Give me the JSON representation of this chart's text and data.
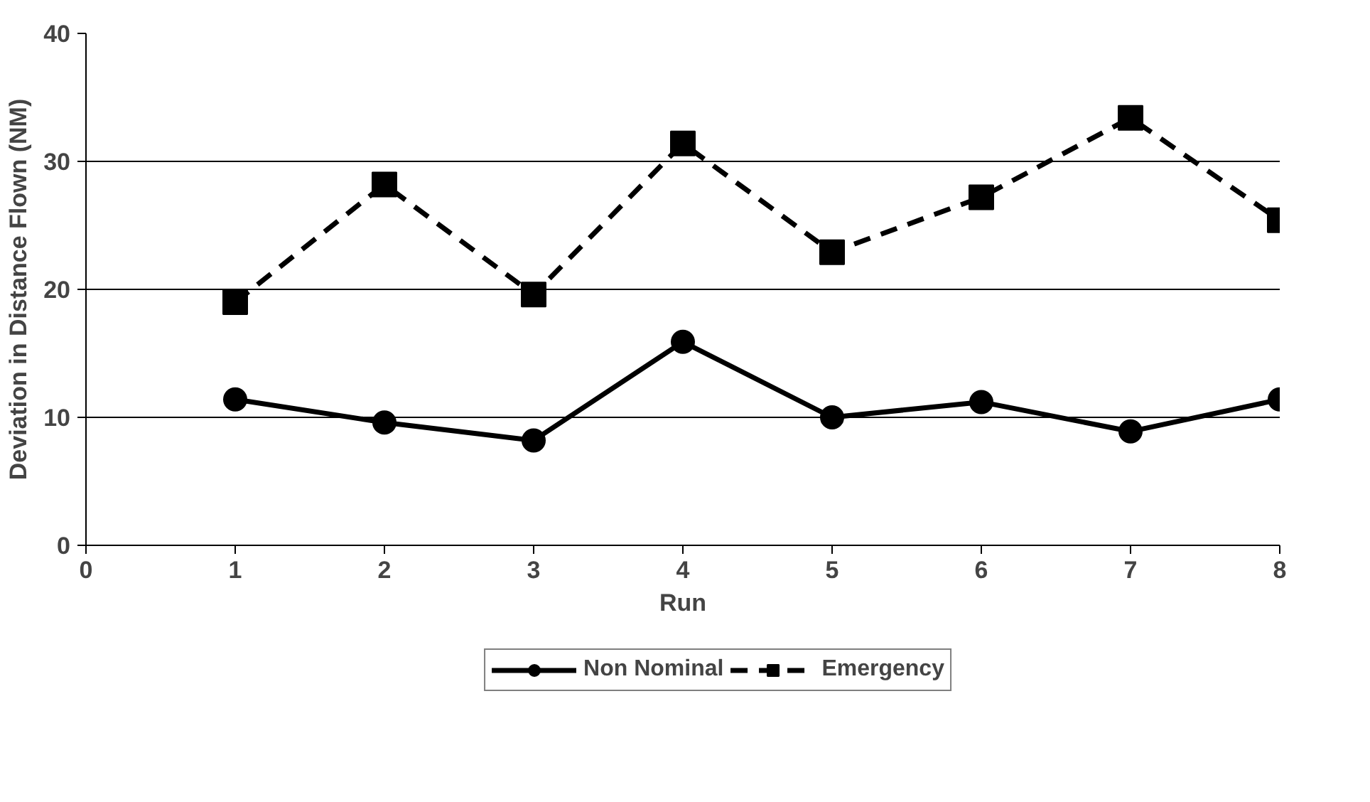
{
  "chart_data": {
    "type": "line",
    "xlabel": "Run",
    "ylabel": "Deviation in Distance Flown (NM)",
    "x": [
      1,
      2,
      3,
      4,
      5,
      6,
      7,
      8
    ],
    "xlim": [
      0,
      8
    ],
    "xticks": [
      0,
      1,
      2,
      3,
      4,
      5,
      6,
      7,
      8
    ],
    "ylim": [
      0,
      40
    ],
    "yticks": [
      0,
      10,
      20,
      30,
      40
    ],
    "grid": "y",
    "legend": "bottom",
    "series": [
      {
        "name": "Non Nominal",
        "color": "#000000",
        "marker": "circle",
        "line_style": "solid",
        "values": [
          11.4,
          9.6,
          8.2,
          15.9,
          10.0,
          11.2,
          8.9,
          11.4
        ]
      },
      {
        "name": "Emergency",
        "color": "#000000",
        "marker": "square",
        "line_style": "dashed",
        "values": [
          19.0,
          28.2,
          19.6,
          31.4,
          22.9,
          27.2,
          33.4,
          25.4
        ]
      }
    ]
  }
}
